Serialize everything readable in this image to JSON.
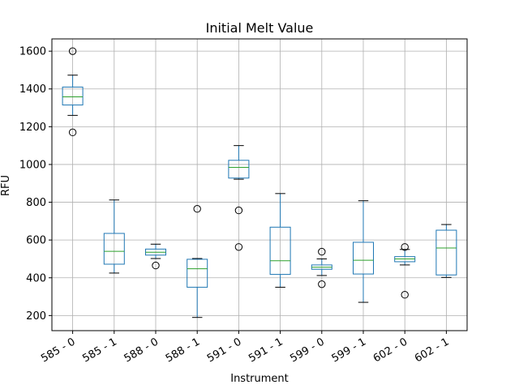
{
  "chart_data": {
    "type": "box",
    "title": "Initial Melt Value",
    "xlabel": "Instrument",
    "ylabel": "RFU",
    "ylim": [
      120,
      1665
    ],
    "yticks": [
      200,
      400,
      600,
      800,
      1000,
      1200,
      1400,
      1600
    ],
    "grid": true,
    "colors": {
      "box": "#1f77b4",
      "median": "#2ca02c",
      "whisker": "#000000",
      "grid": "#b0b0b0"
    },
    "categories": [
      "585 - 0",
      "585 - 1",
      "588 - 0",
      "588 - 1",
      "591 - 0",
      "591 - 1",
      "599 - 0",
      "599 - 1",
      "602 - 0",
      "602 - 1"
    ],
    "boxes": [
      {
        "whislo": 1260,
        "q1": 1315,
        "med": 1358,
        "q3": 1410,
        "whishi": 1473,
        "fliers": [
          1170,
          1600
        ]
      },
      {
        "whislo": 425,
        "q1": 472,
        "med": 540,
        "q3": 635,
        "whishi": 812,
        "fliers": []
      },
      {
        "whislo": 502,
        "q1": 520,
        "med": 535,
        "q3": 552,
        "whishi": 578,
        "fliers": [
          465
        ]
      },
      {
        "whislo": 190,
        "q1": 350,
        "med": 448,
        "q3": 498,
        "whishi": 502,
        "fliers": [
          765
        ]
      },
      {
        "whislo": 922,
        "q1": 928,
        "med": 985,
        "q3": 1022,
        "whishi": 1100,
        "fliers": [
          757,
          563
        ]
      },
      {
        "whislo": 350,
        "q1": 418,
        "med": 490,
        "q3": 668,
        "whishi": 846,
        "fliers": []
      },
      {
        "whislo": 412,
        "q1": 445,
        "med": 456,
        "q3": 468,
        "whishi": 500,
        "fliers": [
          538,
          366
        ]
      },
      {
        "whislo": 270,
        "q1": 420,
        "med": 493,
        "q3": 588,
        "whishi": 808,
        "fliers": []
      },
      {
        "whislo": 468,
        "q1": 485,
        "med": 500,
        "q3": 512,
        "whishi": 550,
        "fliers": [
          563,
          310
        ]
      },
      {
        "whislo": 402,
        "q1": 415,
        "med": 558,
        "q3": 652,
        "whishi": 682,
        "fliers": []
      }
    ]
  }
}
